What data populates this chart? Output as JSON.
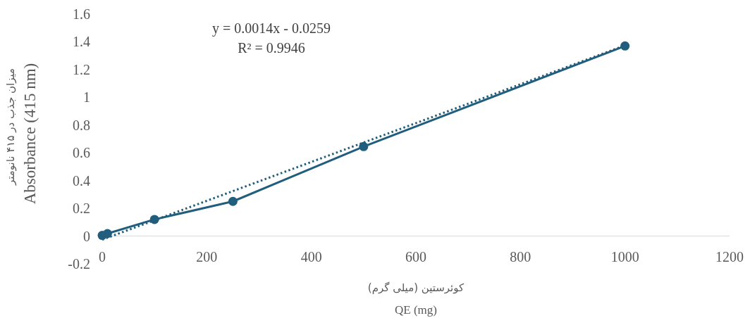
{
  "chart_data": {
    "type": "line",
    "xlabel": "کوئرستین (میلی گرم)",
    "ylabel": "میزان جذب در ۴۱۵ نانومتر",
    "annotations": [
      "QE (mg)",
      "Absorbance (415 nm)",
      "y = 0.0014x - 0.0259",
      "R² = 0.9946"
    ],
    "x": [
      0,
      10,
      100,
      250,
      500,
      1000
    ],
    "series": [
      {
        "color": "#215e7d",
        "values": [
          0.005,
          0.018,
          0.12,
          0.25,
          0.645,
          1.37
        ],
        "marker": "circle",
        "line_style": "solid"
      },
      {
        "type": "line",
        "color": "#215e7d",
        "x": [
          0,
          1000
        ],
        "values": [
          -0.0259,
          1.3741
        ],
        "marker": "none",
        "line_style": "dotted"
      }
    ],
    "xlim": [
      0,
      1200
    ],
    "xticks": [
      0,
      200,
      400,
      600,
      800,
      1000,
      1200
    ],
    "ylim": [
      -0.2,
      1.6
    ],
    "yticks": [
      -0.2,
      0,
      0.2,
      0.4,
      0.6,
      0.8,
      1,
      1.2,
      1.4,
      1.6
    ]
  }
}
